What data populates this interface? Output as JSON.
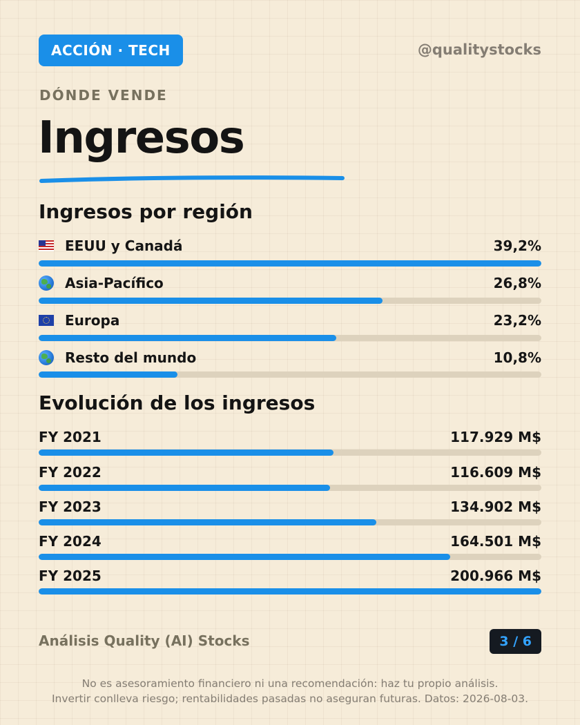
{
  "header": {
    "badge": "ACCIÓN · TECH",
    "handle": "@qualitystocks"
  },
  "eyebrow": "DÓNDE VENDE",
  "title": "Ingresos",
  "colors": {
    "accent": "#1a8fe8",
    "track": "#ddd2bd",
    "background": "#f6ecd9"
  },
  "regions": {
    "title": "Ingresos por región",
    "items": [
      {
        "icon": "us-flag-icon",
        "label": "EEUU y Canadá",
        "value": "39,2%",
        "share": 39.2
      },
      {
        "icon": "globe-asia-icon",
        "label": "Asia-Pacífico",
        "value": "26,8%",
        "share": 26.8
      },
      {
        "icon": "eu-flag-icon",
        "label": "Europa",
        "value": "23,2%",
        "share": 23.2
      },
      {
        "icon": "globe-world-icon",
        "label": "Resto del mundo",
        "value": "10,8%",
        "share": 10.8
      }
    ]
  },
  "revenue": {
    "title": "Evolución de los ingresos",
    "items": [
      {
        "label": "FY 2021",
        "value": "117.929 M$",
        "amount": 117929
      },
      {
        "label": "FY 2022",
        "value": "116.609 M$",
        "amount": 116609
      },
      {
        "label": "FY 2023",
        "value": "134.902 M$",
        "amount": 134902
      },
      {
        "label": "FY 2024",
        "value": "164.501 M$",
        "amount": 164501
      },
      {
        "label": "FY 2025",
        "value": "200.966 M$",
        "amount": 200966
      }
    ]
  },
  "footer": {
    "label": "Análisis Quality (AI) Stocks",
    "page": "3 / 6",
    "disclaimer_line1": "No es asesoramiento financiero ni una recomendación: haz tu propio análisis.",
    "disclaimer_line2": "Invertir conlleva riesgo; rentabilidades pasadas no aseguran futuras. Datos: 2026-08-03."
  }
}
